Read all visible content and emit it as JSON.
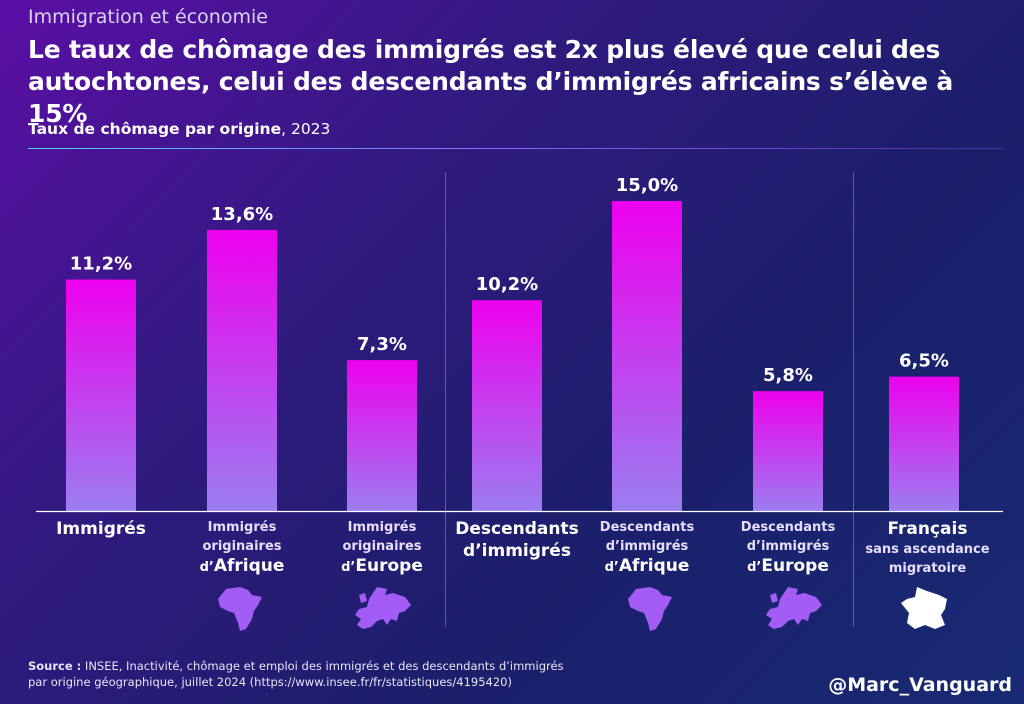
{
  "header": {
    "supertitle": "Immigration et économie",
    "title": "Le taux de chômage des immigrés est 2x plus élevé que celui des autochtones, celui des descendants d’immigrés africains s’élève à 15%",
    "subtitle_bold": "Taux de chômage par origine",
    "subtitle_rest": ", 2023"
  },
  "chart_data": {
    "type": "bar",
    "title": "Taux de chômage par origine, 2023",
    "categories": [
      "Immigrés",
      "Immigrés originaires d’Afrique",
      "Immigrés originaires d’Europe",
      "Descendants d’immigrés",
      "Descendants d’immigrés d’Afrique",
      "Descendants d’immigrés d’Europe",
      "Français sans ascendance migratoire"
    ],
    "values": [
      11.2,
      13.6,
      7.3,
      10.2,
      15.0,
      5.8,
      6.5
    ],
    "value_labels": [
      "11,2%",
      "13,6%",
      "7,3%",
      "10,2%",
      "15,0%",
      "5,8%",
      "6,5%"
    ],
    "unit": "%",
    "ylim": [
      0,
      15
    ],
    "xlabel": "",
    "ylabel": "",
    "grid": false,
    "bar_colors": {
      "top": "#ee00ee",
      "bottom": "#9b7df0"
    }
  },
  "labels": {
    "cat1": {
      "main": "Immigrés"
    },
    "cat2": {
      "l1": "Immigrés",
      "l2": "originaires",
      "prefix": "d’",
      "big": "Afrique"
    },
    "cat3": {
      "l1": "Immigrés",
      "l2": "originaires",
      "prefix": "d’",
      "big": "Europe"
    },
    "cat4": {
      "l1": "Descendants",
      "l2": "d’immigrés"
    },
    "cat5": {
      "l1": "Descendants",
      "l2": "d’immigrés",
      "prefix": "d’",
      "big": "Afrique"
    },
    "cat6": {
      "l1": "Descendants",
      "l2": "d’immigrés",
      "prefix": "d’",
      "big": "Europe"
    },
    "cat7": {
      "l1": "Français",
      "l2": "sans ascendance",
      "l3": "migratoire"
    }
  },
  "footer": {
    "source_label": "Source :",
    "source_text": "INSEE, Inactivité, chômage et emploi des immigrés et des descendants d’immigrés",
    "source_text2": "par origine géographique, juillet 2024 (https://www.insee.fr/fr/statistiques/4195420)",
    "handle": "@Marc_Vanguard"
  },
  "icons": [
    "africa-map-icon",
    "europe-map-icon",
    "africa-map-icon",
    "europe-map-icon",
    "france-map-icon"
  ]
}
